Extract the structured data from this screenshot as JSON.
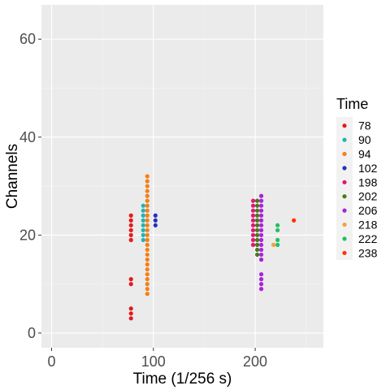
{
  "chart_data": {
    "type": "scatter",
    "xlabel": "Time (1/256 s)",
    "ylabel": "Channels",
    "xlim": [
      -10,
      267
    ],
    "ylim": [
      -3,
      67
    ],
    "x_ticks": [
      0,
      100,
      200
    ],
    "y_ticks": [
      0,
      20,
      40,
      60
    ],
    "grid": true,
    "legend": {
      "title": "Time",
      "placement": "right"
    },
    "series": [
      {
        "name": "78",
        "color": "#e41a1c",
        "points": [
          [
            78,
            3
          ],
          [
            78,
            4
          ],
          [
            78,
            5
          ],
          [
            78,
            10
          ],
          [
            78,
            11
          ],
          [
            78,
            19
          ],
          [
            78,
            20
          ],
          [
            78,
            21
          ],
          [
            78,
            22
          ],
          [
            78,
            23
          ],
          [
            78,
            24
          ]
        ]
      },
      {
        "name": "90",
        "color": "#1fb5b5",
        "points": [
          [
            90,
            19
          ],
          [
            90,
            20
          ],
          [
            90,
            21
          ],
          [
            90,
            22
          ],
          [
            90,
            23
          ],
          [
            90,
            24
          ],
          [
            90,
            25
          ],
          [
            90,
            26
          ]
        ]
      },
      {
        "name": "94",
        "color": "#f57f17",
        "points": [
          [
            94,
            8
          ],
          [
            94,
            9
          ],
          [
            94,
            10
          ],
          [
            94,
            11
          ],
          [
            94,
            12
          ],
          [
            94,
            13
          ],
          [
            94,
            14
          ],
          [
            94,
            15
          ],
          [
            94,
            16
          ],
          [
            94,
            17
          ],
          [
            94,
            18
          ],
          [
            94,
            19
          ],
          [
            94,
            20
          ],
          [
            94,
            21
          ],
          [
            94,
            22
          ],
          [
            94,
            23
          ],
          [
            94,
            24
          ],
          [
            94,
            25
          ],
          [
            94,
            26
          ],
          [
            94,
            27
          ],
          [
            94,
            28
          ],
          [
            94,
            29
          ],
          [
            94,
            30
          ],
          [
            94,
            31
          ],
          [
            94,
            32
          ]
        ]
      },
      {
        "name": "102",
        "color": "#2233bb",
        "points": [
          [
            102,
            22
          ],
          [
            102,
            23
          ],
          [
            102,
            24
          ]
        ]
      },
      {
        "name": "198",
        "color": "#e0157a",
        "points": [
          [
            198,
            18
          ],
          [
            198,
            19
          ],
          [
            198,
            20
          ],
          [
            198,
            21
          ],
          [
            198,
            22
          ],
          [
            198,
            23
          ],
          [
            198,
            24
          ],
          [
            198,
            25
          ],
          [
            198,
            26
          ],
          [
            198,
            27
          ]
        ]
      },
      {
        "name": "202",
        "color": "#4a7a12",
        "points": [
          [
            202,
            16
          ],
          [
            202,
            17
          ],
          [
            202,
            18
          ],
          [
            202,
            19
          ],
          [
            202,
            20
          ],
          [
            202,
            21
          ],
          [
            202,
            22
          ],
          [
            202,
            23
          ],
          [
            202,
            24
          ],
          [
            202,
            25
          ],
          [
            202,
            26
          ],
          [
            202,
            27
          ]
        ]
      },
      {
        "name": "206",
        "color": "#aa22dd",
        "points": [
          [
            206,
            9
          ],
          [
            206,
            10
          ],
          [
            206,
            11
          ],
          [
            206,
            12
          ],
          [
            206,
            15
          ],
          [
            206,
            16
          ],
          [
            206,
            17
          ],
          [
            206,
            18
          ],
          [
            206,
            19
          ],
          [
            206,
            20
          ],
          [
            206,
            21
          ],
          [
            206,
            22
          ],
          [
            206,
            23
          ],
          [
            206,
            24
          ],
          [
            206,
            25
          ],
          [
            206,
            26
          ],
          [
            206,
            27
          ],
          [
            206,
            28
          ]
        ]
      },
      {
        "name": "218",
        "color": "#f5a040",
        "points": [
          [
            218,
            18
          ]
        ]
      },
      {
        "name": "222",
        "color": "#22c060",
        "points": [
          [
            222,
            18
          ],
          [
            222,
            19
          ],
          [
            222,
            21
          ],
          [
            222,
            22
          ]
        ]
      },
      {
        "name": "238",
        "color": "#ff3300",
        "points": [
          [
            238,
            23
          ]
        ]
      }
    ]
  }
}
